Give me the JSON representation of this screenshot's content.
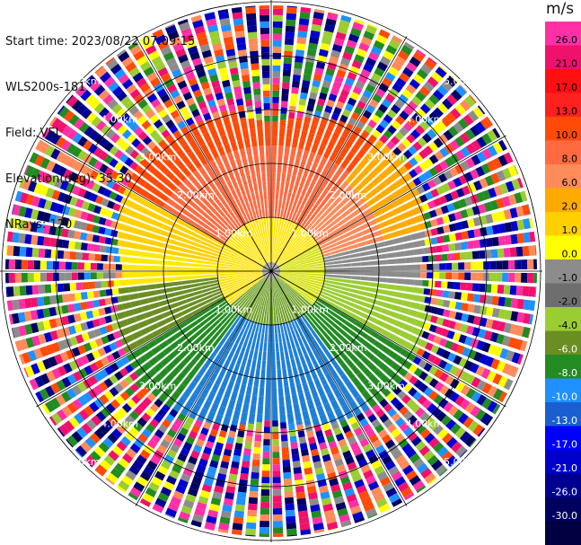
{
  "info": {
    "start_time": "Start time: 2023/08/22 07:09:15",
    "instrument": "WLS200s-181",
    "field": "Field: VEL",
    "elevation": "Elevation(deg): 35.30",
    "nrays": "NRays: 120"
  },
  "colorbar": {
    "unit": "m/s",
    "ticks": [
      "26.0",
      "21.0",
      "17.0",
      "13.0",
      "10.0",
      "8.0",
      "6.0",
      "2.0",
      "1.0",
      "0.0",
      "-1.0",
      "-2.0",
      "-4.0",
      "-6.0",
      "-8.0",
      "-10.0",
      "-13.0",
      "-17.0",
      "-21.0",
      "-26.0",
      "-30.0"
    ],
    "colors": [
      "#ff2fa6",
      "#f0116c",
      "#ff0f0f",
      "#ff2020",
      "#ff4a08",
      "#ff6a40",
      "#ff8a5a",
      "#ffaa00",
      "#ffd000",
      "#ffff00",
      "#8c8c8c",
      "#6e6e6e",
      "#9acd32",
      "#6b8e23",
      "#228b22",
      "#1e90ff",
      "#1a5fd0",
      "#0000ff",
      "#0000cc",
      "#000090",
      "#000060",
      "#000040"
    ]
  },
  "range_rings": [
    "1.00km",
    "2.00km",
    "3.00km",
    "4.00km",
    "5.00km"
  ]
}
